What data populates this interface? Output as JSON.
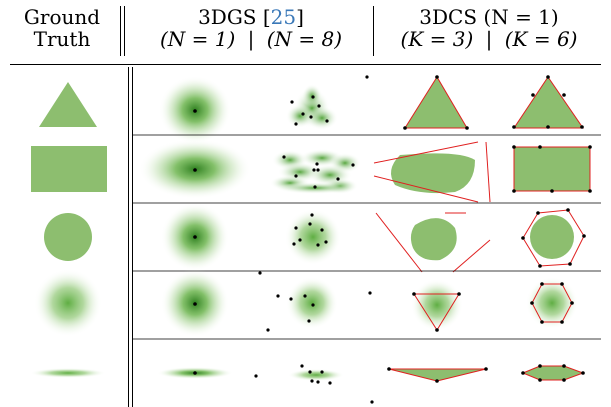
{
  "headers": {
    "ground_truth_line1": "Ground",
    "ground_truth_line2": "Truth",
    "gs_title": "3DGS [",
    "gs_cite": "25",
    "gs_title_end": "]",
    "gs_n1": "(N = 1)",
    "gs_n8": "(N = 8)",
    "dcs_title": "3DCS (N = 1)",
    "dcs_k3": "(K = 3)",
    "dcs_k6": "(K = 6)"
  },
  "rows": [
    "triangle",
    "rectangle",
    "circle",
    "gaussian-blob",
    "thin-ellipse"
  ],
  "colors": {
    "shape_fill": "#8dbe6f",
    "gaussian_core": "#2e7d1e",
    "gaussian_mid": "#7fbf63",
    "convex_outline": "#e02020",
    "point": "#000000",
    "citation": "#3a78b8"
  }
}
